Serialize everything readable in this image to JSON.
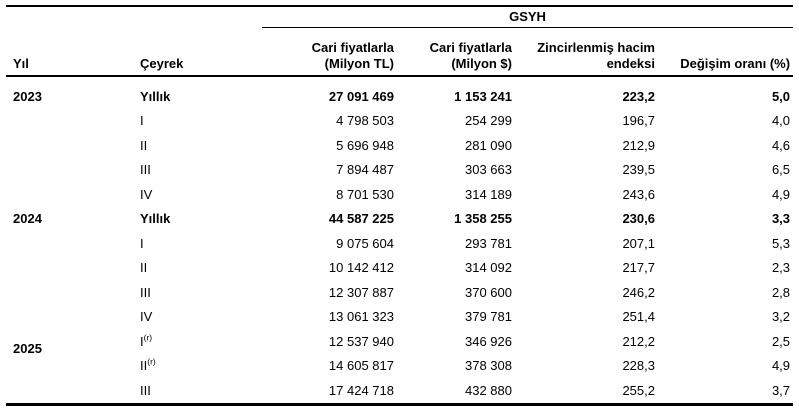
{
  "table": {
    "group_header": "GSYH",
    "columns": {
      "year": "Yıl",
      "quarter": "Çeyrek",
      "tl_line1": "Cari fiyatlarla",
      "tl_line2": "(Milyon TL)",
      "usd_line1": "Cari fiyatlarla",
      "usd_line2": "(Milyon $)",
      "index_line1": "Zincirlenmiş hacim",
      "index_line2": "endeksi",
      "change": "Değişim oranı (%)"
    },
    "rows": [
      {
        "year": "2023",
        "quarter": "Yıllık",
        "tl": "27 091 469",
        "usd": "1 153 241",
        "index": "223,2",
        "change": "5,0"
      },
      {
        "quarter": "I",
        "tl": "4 798 503",
        "usd": "254 299",
        "index": "196,7",
        "change": "4,0"
      },
      {
        "quarter": "II",
        "tl": "5 696 948",
        "usd": "281 090",
        "index": "212,9",
        "change": "4,6"
      },
      {
        "quarter": "III",
        "tl": "7 894 487",
        "usd": "303 663",
        "index": "239,5",
        "change": "6,5"
      },
      {
        "quarter": "IV",
        "tl": "8 701 530",
        "usd": "314 189",
        "index": "243,6",
        "change": "4,9"
      },
      {
        "year": "2024",
        "quarter": "Yıllık",
        "tl": "44 587 225",
        "usd": "1 358 255",
        "index": "230,6",
        "change": "3,3"
      },
      {
        "quarter": "I",
        "tl": "9 075 604",
        "usd": "293 781",
        "index": "207,1",
        "change": "5,3"
      },
      {
        "quarter": "II",
        "tl": "10 142 412",
        "usd": "314 092",
        "index": "217,7",
        "change": "2,3"
      },
      {
        "quarter": "III",
        "tl": "12 307 887",
        "usd": "370 600",
        "index": "246,2",
        "change": "2,8"
      },
      {
        "quarter": "IV",
        "tl": "13 061 323",
        "usd": "379 781",
        "index": "251,4",
        "change": "3,2"
      },
      {
        "year": "2025",
        "quarter": "I",
        "sup": "(r)",
        "tl": "12 537 940",
        "usd": "346 926",
        "index": "212,2",
        "change": "2,5"
      },
      {
        "quarter": "II",
        "sup": "(r)",
        "tl": "14 605 817",
        "usd": "378 308",
        "index": "228,3",
        "change": "4,9"
      },
      {
        "quarter": "III",
        "tl": "17 424 718",
        "usd": "432 880",
        "index": "255,2",
        "change": "3,7"
      }
    ]
  }
}
